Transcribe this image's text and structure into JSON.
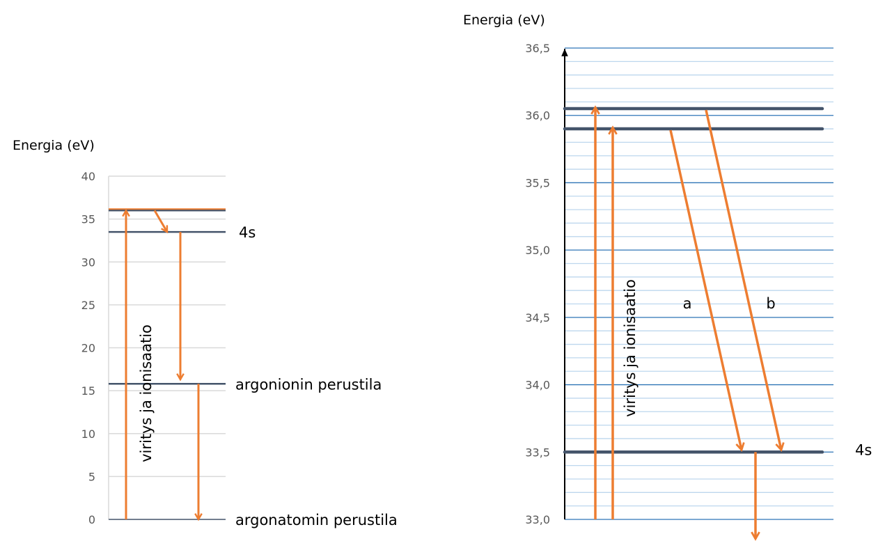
{
  "colors": {
    "arrow": "#ED7D31",
    "level": "#44546A",
    "grid_left": "#D9D9D9",
    "grid_right_major": "#2E75B6",
    "grid_right_minor": "#BDD7EE"
  },
  "left": {
    "axis_title": "Energia (eV)",
    "ylim": [
      0,
      40
    ],
    "ticks": [
      "0",
      "5",
      "10",
      "15",
      "20",
      "25",
      "30",
      "35",
      "40"
    ],
    "levels": [
      {
        "energy": 36.0,
        "label": ""
      },
      {
        "energy": 33.5,
        "label": "4s"
      },
      {
        "energy": 15.8,
        "label": "argonionin perustila"
      },
      {
        "energy": 0,
        "label": "argonatomin perustila"
      }
    ],
    "vertical_label": "viritys ja ionisaatio",
    "transitions": [
      {
        "from": 0,
        "to": 36.0
      },
      {
        "from": 36.0,
        "to": 33.5
      },
      {
        "from": 33.5,
        "to": 16.3
      },
      {
        "from": 15.8,
        "to": 0
      }
    ]
  },
  "right": {
    "axis_title": "Energia (eV)",
    "ylim": [
      33.0,
      36.5
    ],
    "ticks": [
      "33,0",
      "33,5",
      "34,0",
      "34,5",
      "35,0",
      "35,5",
      "36,0",
      "36,5"
    ],
    "levels": [
      {
        "energy": 36.05,
        "label": ""
      },
      {
        "energy": 35.9,
        "label": ""
      },
      {
        "energy": 33.5,
        "label": "4s"
      }
    ],
    "vertical_label": "viritys ja ionisaatio",
    "transitions": [
      {
        "from": 33.0,
        "to": 36.05,
        "label": ""
      },
      {
        "from": 33.0,
        "to": 35.9,
        "label": ""
      },
      {
        "from": 35.9,
        "to": 33.5,
        "label": "a"
      },
      {
        "from": 36.05,
        "to": 33.5,
        "label": "b"
      },
      {
        "from": 33.5,
        "to": 32.85,
        "label": ""
      }
    ]
  }
}
